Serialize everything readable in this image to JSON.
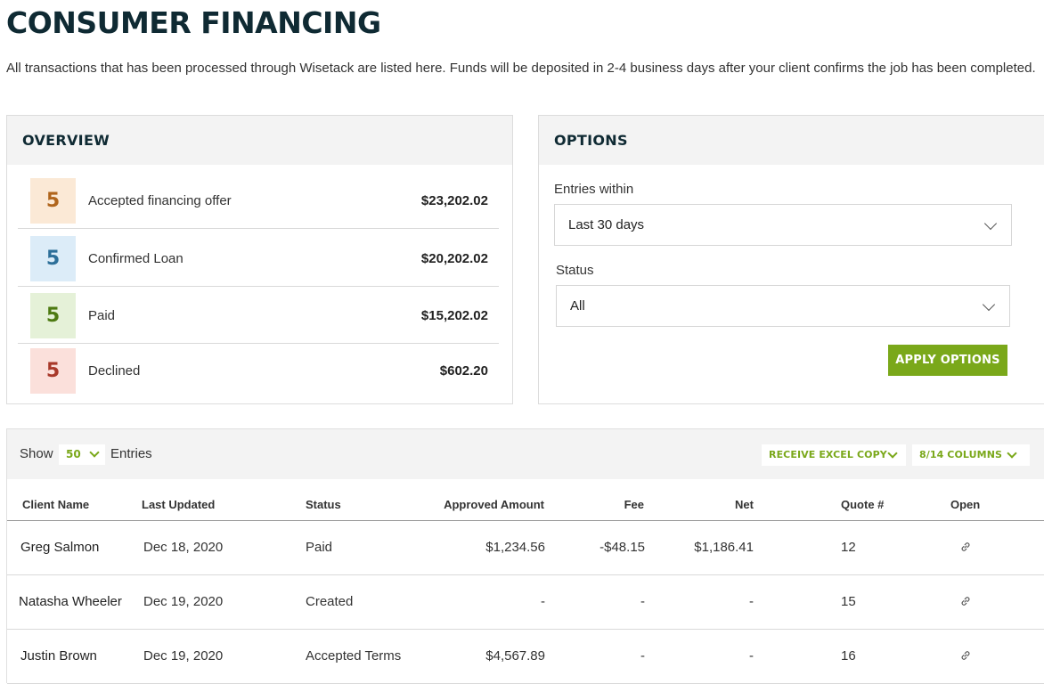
{
  "page": {
    "title": "CONSUMER FINANCING",
    "description": "All transactions that has been processed through Wisetack are listed here. Funds will be deposited in 2-4 business days after your client confirms the job has been completed."
  },
  "overview": {
    "title": "OVERVIEW",
    "rows": [
      {
        "count": "5",
        "label": "Accepted financing offer",
        "amount": "$23,202.02",
        "bg": "#fbe9d6",
        "fg": "#b0651c"
      },
      {
        "count": "5",
        "label": "Confirmed Loan",
        "amount": "$20,202.02",
        "bg": "#dcecf8",
        "fg": "#2d6f99"
      },
      {
        "count": "5",
        "label": "Paid",
        "amount": "$15,202.02",
        "bg": "#e5f1d8",
        "fg": "#4d7a12"
      },
      {
        "count": "5",
        "label": "Declined",
        "amount": "$602.20",
        "bg": "#fbe0db",
        "fg": "#a8392a"
      }
    ]
  },
  "options": {
    "title": "OPTIONS",
    "entries_within_label": "Entries within",
    "entries_within_value": "Last 30 days",
    "status_label": "Status",
    "status_value": "All",
    "apply_label": "APPLY OPTIONS"
  },
  "table_toolbar": {
    "show_label": "Show",
    "entries_count": "50",
    "entries_label": "Entries",
    "excel_label": "RECEIVE EXCEL COPY",
    "columns_label": "8/14 COLUMNS"
  },
  "table": {
    "headers": {
      "client": "Client Name",
      "updated": "Last Updated",
      "status": "Status",
      "approved": "Approved Amount",
      "fee": "Fee",
      "net": "Net",
      "quote": "Quote #",
      "open": "Open"
    },
    "rows": [
      {
        "client": "Greg Salmon",
        "updated": "Dec 18, 2020",
        "status": "Paid",
        "approved": "$1,234.56",
        "fee": "-$48.15",
        "net": "$1,186.41",
        "quote": "12"
      },
      {
        "client": "Natasha Wheeler",
        "updated": "Dec 19, 2020",
        "status": "Created",
        "approved": "-",
        "fee": "-",
        "net": "-",
        "quote": "15"
      },
      {
        "client": "Justin Brown",
        "updated": "Dec 19, 2020",
        "status": "Accepted Terms",
        "approved": "$4,567.89",
        "fee": "-",
        "net": "-",
        "quote": "16"
      }
    ]
  },
  "colors": {
    "accent_green": "#7aa81a",
    "heading_dark": "#0f2a33"
  }
}
